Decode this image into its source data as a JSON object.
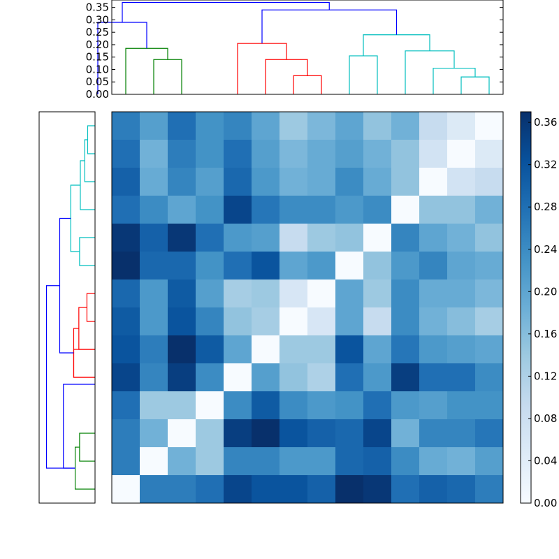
{
  "chart_data": [
    {
      "type": "dendrogram",
      "orientation": "top",
      "ylim": [
        0,
        0.38
      ],
      "yticks": [
        "0.00",
        "0.05",
        "0.10",
        "0.15",
        "0.20",
        "0.25",
        "0.30",
        "0.35"
      ],
      "leaf_count": 14,
      "links": [
        {
          "a": 1,
          "b": 2,
          "h": 0.14,
          "color": "#008000"
        },
        {
          "a": 0,
          "b": 1.5,
          "h": 0.185,
          "color": "#008000"
        },
        {
          "a": -1,
          "b": 0.75,
          "h": 0.29,
          "color": "#0000ff"
        },
        {
          "a": 6,
          "b": 7,
          "h": 0.075,
          "color": "#ff0000"
        },
        {
          "a": 5,
          "b": 6.5,
          "h": 0.14,
          "color": "#ff0000"
        },
        {
          "a": 4,
          "b": 5.75,
          "h": 0.205,
          "color": "#ff0000"
        },
        {
          "a": 12,
          "b": 13,
          "h": 0.07,
          "color": "#00bfbf"
        },
        {
          "a": 11,
          "b": 12.5,
          "h": 0.105,
          "color": "#00bfbf"
        },
        {
          "a": 10,
          "b": 11.75,
          "h": 0.175,
          "color": "#00bfbf"
        },
        {
          "a": 8,
          "b": 9,
          "h": 0.155,
          "color": "#00bfbf"
        },
        {
          "a": 8.5,
          "b": 10.875,
          "h": 0.24,
          "color": "#00bfbf"
        },
        {
          "a": 4.875,
          "b": 9.6875,
          "h": 0.34,
          "color": "#0000ff"
        },
        {
          "a": -0.125,
          "b": 7.28125,
          "h": 0.37,
          "color": "#0000ff"
        }
      ]
    },
    {
      "type": "dendrogram",
      "orientation": "left",
      "leaf_count": 14,
      "links": [
        {
          "a": 1,
          "b": 2,
          "h": 0.105,
          "color": "#008000"
        },
        {
          "a": 0,
          "b": 1.5,
          "h": 0.135,
          "color": "#008000"
        },
        {
          "a": 0.75,
          "b": 3.75,
          "h": 0.215,
          "color": "#0000ff"
        },
        {
          "a": 4,
          "b": 5,
          "h": 0.145,
          "color": "#ff0000"
        },
        {
          "a": 6,
          "b": 7,
          "h": 0.055,
          "color": "#ff0000"
        },
        {
          "a": 5,
          "b": 6.5,
          "h": 0.11,
          "color": "#ff0000"
        },
        {
          "a": 4,
          "b": 5.75,
          "h": 0.145,
          "color": "#ff0000"
        },
        {
          "a": 8,
          "b": 9,
          "h": 0.105,
          "color": "#00bfbf"
        },
        {
          "a": 12,
          "b": 13,
          "h": 0.05,
          "color": "#00bfbf"
        },
        {
          "a": 11,
          "b": 12.5,
          "h": 0.07,
          "color": "#00bfbf"
        },
        {
          "a": 10,
          "b": 11.75,
          "h": 0.1,
          "color": "#00bfbf"
        },
        {
          "a": 8.5,
          "b": 10.875,
          "h": 0.165,
          "color": "#00bfbf"
        },
        {
          "a": 4.875,
          "b": 9.6875,
          "h": 0.24,
          "color": "#0000ff"
        },
        {
          "a": 0.75,
          "b": 7.28125,
          "h": 0.33,
          "color": "#0000ff"
        }
      ]
    },
    {
      "type": "heatmap",
      "vmin": 0,
      "vmax": 0.37,
      "colormap": [
        "#f7fbff",
        "#deebf7",
        "#c6dbef",
        "#9ecae1",
        "#6baed6",
        "#4292c6",
        "#2171b5",
        "#08519c",
        "#08306b"
      ],
      "rows": [
        [
          0.26,
          0.21,
          0.28,
          0.23,
          0.25,
          0.2,
          0.14,
          0.17,
          0.2,
          0.15,
          0.18,
          0.09,
          0.05,
          0.0
        ],
        [
          0.28,
          0.18,
          0.26,
          0.23,
          0.28,
          0.21,
          0.17,
          0.19,
          0.21,
          0.18,
          0.15,
          0.07,
          0.0,
          0.05
        ],
        [
          0.3,
          0.19,
          0.25,
          0.21,
          0.29,
          0.22,
          0.18,
          0.19,
          0.24,
          0.19,
          0.15,
          0.0,
          0.07,
          0.09
        ],
        [
          0.28,
          0.24,
          0.2,
          0.23,
          0.34,
          0.27,
          0.24,
          0.24,
          0.22,
          0.24,
          0.0,
          0.15,
          0.15,
          0.18
        ],
        [
          0.36,
          0.3,
          0.36,
          0.28,
          0.22,
          0.21,
          0.09,
          0.14,
          0.15,
          0.0,
          0.25,
          0.2,
          0.18,
          0.15
        ],
        [
          0.37,
          0.29,
          0.29,
          0.23,
          0.28,
          0.32,
          0.2,
          0.22,
          0.0,
          0.15,
          0.22,
          0.25,
          0.2,
          0.19
        ],
        [
          0.29,
          0.22,
          0.31,
          0.21,
          0.13,
          0.14,
          0.06,
          0.0,
          0.2,
          0.14,
          0.24,
          0.19,
          0.19,
          0.17
        ],
        [
          0.31,
          0.22,
          0.32,
          0.25,
          0.15,
          0.13,
          0.0,
          0.06,
          0.2,
          0.09,
          0.24,
          0.18,
          0.16,
          0.13
        ],
        [
          0.32,
          0.26,
          0.37,
          0.31,
          0.2,
          0.0,
          0.14,
          0.14,
          0.32,
          0.2,
          0.27,
          0.22,
          0.21,
          0.2
        ],
        [
          0.34,
          0.25,
          0.35,
          0.24,
          0.0,
          0.21,
          0.15,
          0.12,
          0.28,
          0.22,
          0.35,
          0.28,
          0.28,
          0.24
        ],
        [
          0.28,
          0.14,
          0.14,
          0.0,
          0.24,
          0.31,
          0.24,
          0.22,
          0.23,
          0.28,
          0.22,
          0.21,
          0.23,
          0.23
        ],
        [
          0.26,
          0.18,
          0.0,
          0.14,
          0.35,
          0.37,
          0.32,
          0.3,
          0.29,
          0.34,
          0.18,
          0.25,
          0.25,
          0.27
        ],
        [
          0.26,
          0.0,
          0.18,
          0.14,
          0.25,
          0.25,
          0.22,
          0.22,
          0.29,
          0.3,
          0.24,
          0.19,
          0.18,
          0.21
        ],
        [
          0.0,
          0.26,
          0.26,
          0.28,
          0.34,
          0.32,
          0.32,
          0.3,
          0.37,
          0.36,
          0.28,
          0.3,
          0.29,
          0.26
        ]
      ]
    },
    {
      "type": "colorbar",
      "vmin": 0,
      "vmax": 0.37,
      "ticks": [
        0.0,
        0.04,
        0.08,
        0.12,
        0.16,
        0.2,
        0.24,
        0.28,
        0.32,
        0.36
      ],
      "tick_labels": [
        "0.00",
        "0.04",
        "0.08",
        "0.12",
        "0.16",
        "0.20",
        "0.24",
        "0.28",
        "0.32",
        "0.36"
      ]
    }
  ]
}
